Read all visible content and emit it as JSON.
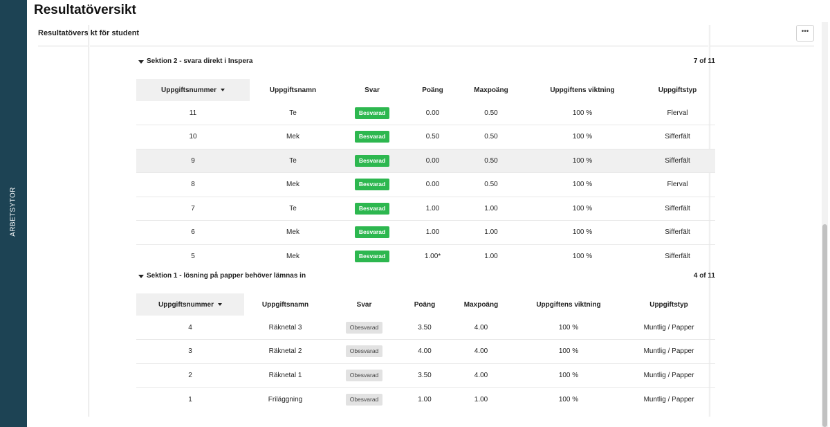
{
  "sidebar": {
    "label": "ARBETSYTOR"
  },
  "page": {
    "title": "Resultatöversikt"
  },
  "panel": {
    "title": "Resultatöversikt för student",
    "more_label": "•••"
  },
  "sections": [
    {
      "title": "Sektion 2 - svara direkt i Inspera",
      "count": "7 of 11",
      "headers": [
        "Uppgiftsnummer",
        "Uppgiftsnamn",
        "Svar",
        "Poäng",
        "Maxpoäng",
        "Uppgiftens viktning",
        "Uppgiftstyp"
      ],
      "rows": [
        {
          "nr": "11",
          "name": "Te",
          "answer": "Besvarad",
          "points": "0.00",
          "max": "0.50",
          "weight": "100 %",
          "type": "Flerval"
        },
        {
          "nr": "10",
          "name": "Mek",
          "answer": "Besvarad",
          "points": "0.50",
          "max": "0.50",
          "weight": "100 %",
          "type": "Sifferfält"
        },
        {
          "nr": "9",
          "name": "Te",
          "answer": "Besvarad",
          "points": "0.00",
          "max": "0.50",
          "weight": "100 %",
          "type": "Sifferfält"
        },
        {
          "nr": "8",
          "name": "Mek",
          "answer": "Besvarad",
          "points": "0.00",
          "max": "0.50",
          "weight": "100 %",
          "type": "Flerval"
        },
        {
          "nr": "7",
          "name": "Te",
          "answer": "Besvarad",
          "points": "1.00",
          "max": "1.00",
          "weight": "100 %",
          "type": "Sifferfält"
        },
        {
          "nr": "6",
          "name": "Mek",
          "answer": "Besvarad",
          "points": "1.00",
          "max": "1.00",
          "weight": "100 %",
          "type": "Sifferfält"
        },
        {
          "nr": "5",
          "name": "Mek",
          "answer": "Besvarad",
          "points": "1.00*",
          "max": "1.00",
          "weight": "100 %",
          "type": "Sifferfält"
        }
      ]
    },
    {
      "title": "Sektion 1 - lösning på papper behöver lämnas in",
      "count": "4 of 11",
      "headers": [
        "Uppgiftsnummer",
        "Uppgiftsnamn",
        "Svar",
        "Poäng",
        "Maxpoäng",
        "Uppgiftens viktning",
        "Uppgiftstyp"
      ],
      "rows": [
        {
          "nr": "4",
          "name": "Räknetal 3",
          "answer": "Obesvarad",
          "points": "3.50",
          "max": "4.00",
          "weight": "100 %",
          "type": "Muntlig / Papper"
        },
        {
          "nr": "3",
          "name": "Räknetal 2",
          "answer": "Obesvarad",
          "points": "4.00",
          "max": "4.00",
          "weight": "100 %",
          "type": "Muntlig / Papper"
        },
        {
          "nr": "2",
          "name": "Räknetal 1",
          "answer": "Obesvarad",
          "points": "3.50",
          "max": "4.00",
          "weight": "100 %",
          "type": "Muntlig / Papper"
        },
        {
          "nr": "1",
          "name": "Friläggning",
          "answer": "Obesvarad",
          "points": "1.00",
          "max": "1.00",
          "weight": "100 %",
          "type": "Muntlig / Papper"
        }
      ]
    }
  ]
}
